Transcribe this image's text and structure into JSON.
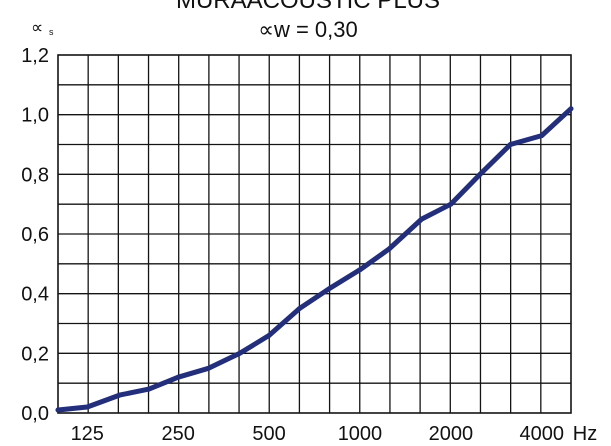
{
  "chart_data": {
    "type": "line",
    "title": "MURAACOUSTIC PLUS",
    "subtitle": "∝w = 0,30",
    "ylabel": "∝",
    "ylabel_subscript": "s",
    "xlabel_unit": "Hz",
    "x_ticks": [
      "125",
      "250",
      "500",
      "1000",
      "2000",
      "4000"
    ],
    "y_ticks": [
      "0,0",
      "0,2",
      "0,4",
      "0,6",
      "0,8",
      "1,0",
      "1,2"
    ],
    "ylim": [
      0,
      1.2
    ],
    "grid": true,
    "x_scale": "log (third-octave bands)",
    "series": [
      {
        "color": "#232f7a",
        "x": [
          100,
          125,
          160,
          200,
          250,
          315,
          400,
          500,
          630,
          800,
          1000,
          1250,
          1600,
          2000,
          2500,
          3150,
          4000,
          5000
        ],
        "values": [
          0.01,
          0.02,
          0.06,
          0.08,
          0.12,
          0.15,
          0.2,
          0.26,
          0.35,
          0.42,
          0.48,
          0.55,
          0.65,
          0.7,
          0.8,
          0.9,
          0.93,
          1.02
        ]
      }
    ]
  }
}
